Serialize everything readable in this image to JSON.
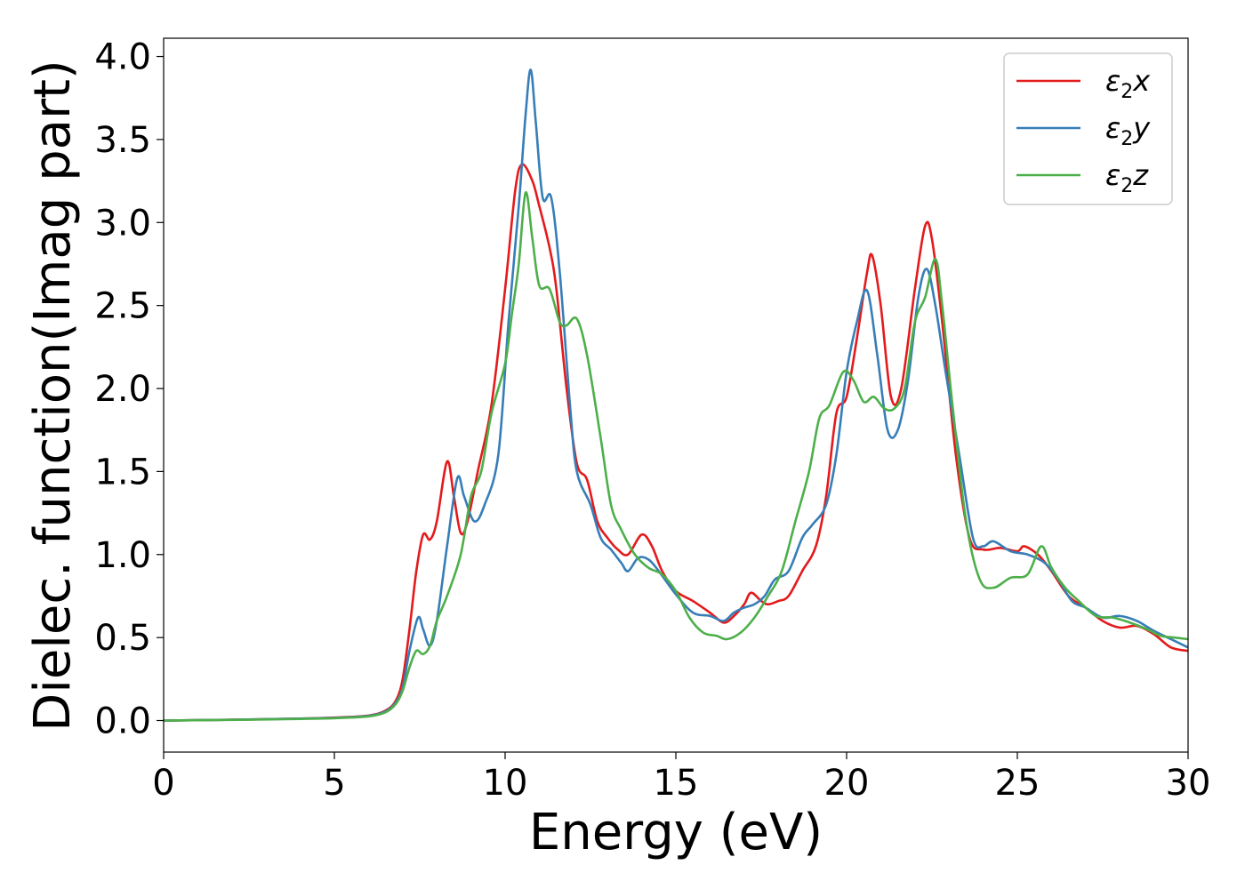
{
  "chart_data": {
    "type": "line",
    "title": "",
    "xlabel": "Energy (eV)",
    "ylabel": "Dielec. function(Imag part)",
    "xlim": [
      0,
      30
    ],
    "ylim": [
      -0.19,
      4.11
    ],
    "xticks": [
      0,
      5,
      10,
      15,
      20,
      25,
      30
    ],
    "xtick_labels": [
      "0",
      "5",
      "10",
      "15",
      "20",
      "25",
      "30"
    ],
    "yticks": [
      0.0,
      0.5,
      1.0,
      1.5,
      2.0,
      2.5,
      3.0,
      3.5,
      4.0
    ],
    "ytick_labels": [
      "0.0",
      "0.5",
      "1.0",
      "1.5",
      "2.0",
      "2.5",
      "3.0",
      "3.5",
      "4.0"
    ],
    "grid": false,
    "legend_position": "top-right",
    "series": [
      {
        "name": "ε2x",
        "label_base": "ε",
        "label_sub": "2",
        "label_tail": "x",
        "color": "#e41a1c",
        "points": [
          [
            0,
            0.0
          ],
          [
            2,
            0.005
          ],
          [
            4,
            0.012
          ],
          [
            5,
            0.018
          ],
          [
            6,
            0.03
          ],
          [
            6.5,
            0.06
          ],
          [
            6.8,
            0.12
          ],
          [
            7.0,
            0.25
          ],
          [
            7.2,
            0.55
          ],
          [
            7.4,
            0.9
          ],
          [
            7.6,
            1.12
          ],
          [
            7.8,
            1.09
          ],
          [
            8.0,
            1.2
          ],
          [
            8.3,
            1.56
          ],
          [
            8.5,
            1.35
          ],
          [
            8.7,
            1.13
          ],
          [
            8.9,
            1.2
          ],
          [
            9.2,
            1.5
          ],
          [
            9.6,
            1.9
          ],
          [
            10.0,
            2.6
          ],
          [
            10.3,
            3.2
          ],
          [
            10.5,
            3.35
          ],
          [
            10.8,
            3.25
          ],
          [
            11.0,
            3.1
          ],
          [
            11.3,
            2.85
          ],
          [
            11.5,
            2.6
          ],
          [
            11.8,
            2.0
          ],
          [
            12.1,
            1.55
          ],
          [
            12.4,
            1.45
          ],
          [
            12.7,
            1.2
          ],
          [
            13.0,
            1.1
          ],
          [
            13.3,
            1.03
          ],
          [
            13.6,
            1.0
          ],
          [
            14.0,
            1.12
          ],
          [
            14.3,
            1.05
          ],
          [
            14.6,
            0.9
          ],
          [
            15.0,
            0.78
          ],
          [
            15.5,
            0.72
          ],
          [
            16.0,
            0.65
          ],
          [
            16.4,
            0.59
          ],
          [
            16.7,
            0.63
          ],
          [
            17.0,
            0.7
          ],
          [
            17.2,
            0.77
          ],
          [
            17.5,
            0.72
          ],
          [
            17.7,
            0.7
          ],
          [
            18.0,
            0.72
          ],
          [
            18.3,
            0.75
          ],
          [
            18.7,
            0.9
          ],
          [
            19.1,
            1.05
          ],
          [
            19.4,
            1.35
          ],
          [
            19.7,
            1.85
          ],
          [
            20.0,
            1.95
          ],
          [
            20.3,
            2.3
          ],
          [
            20.6,
            2.7
          ],
          [
            20.75,
            2.8
          ],
          [
            21.0,
            2.5
          ],
          [
            21.3,
            1.95
          ],
          [
            21.6,
            2.0
          ],
          [
            22.0,
            2.6
          ],
          [
            22.3,
            2.98
          ],
          [
            22.5,
            2.9
          ],
          [
            22.8,
            2.4
          ],
          [
            23.2,
            1.6
          ],
          [
            23.6,
            1.1
          ],
          [
            24.0,
            1.03
          ],
          [
            24.5,
            1.04
          ],
          [
            25.0,
            1.02
          ],
          [
            25.2,
            1.05
          ],
          [
            25.6,
            1.0
          ],
          [
            26.0,
            0.9
          ],
          [
            26.5,
            0.75
          ],
          [
            27.0,
            0.68
          ],
          [
            27.5,
            0.6
          ],
          [
            28.0,
            0.56
          ],
          [
            28.5,
            0.57
          ],
          [
            29.0,
            0.52
          ],
          [
            29.5,
            0.44
          ],
          [
            30.0,
            0.42
          ]
        ]
      },
      {
        "name": "ε2y",
        "label_base": "ε",
        "label_sub": "2",
        "label_tail": "y",
        "color": "#377eb8",
        "points": [
          [
            0,
            0.0
          ],
          [
            2,
            0.005
          ],
          [
            4,
            0.012
          ],
          [
            5,
            0.016
          ],
          [
            6,
            0.028
          ],
          [
            6.5,
            0.055
          ],
          [
            6.8,
            0.11
          ],
          [
            7.0,
            0.2
          ],
          [
            7.2,
            0.42
          ],
          [
            7.45,
            0.62
          ],
          [
            7.6,
            0.55
          ],
          [
            7.8,
            0.45
          ],
          [
            8.0,
            0.6
          ],
          [
            8.3,
            1.05
          ],
          [
            8.6,
            1.46
          ],
          [
            8.8,
            1.35
          ],
          [
            9.1,
            1.2
          ],
          [
            9.4,
            1.3
          ],
          [
            9.8,
            1.6
          ],
          [
            10.1,
            2.4
          ],
          [
            10.4,
            3.1
          ],
          [
            10.6,
            3.65
          ],
          [
            10.75,
            3.92
          ],
          [
            10.9,
            3.6
          ],
          [
            11.1,
            3.15
          ],
          [
            11.35,
            3.15
          ],
          [
            11.6,
            2.7
          ],
          [
            11.9,
            1.9
          ],
          [
            12.1,
            1.5
          ],
          [
            12.5,
            1.3
          ],
          [
            12.8,
            1.1
          ],
          [
            13.1,
            1.03
          ],
          [
            13.4,
            0.95
          ],
          [
            13.6,
            0.9
          ],
          [
            13.9,
            0.98
          ],
          [
            14.2,
            0.97
          ],
          [
            14.5,
            0.9
          ],
          [
            15.0,
            0.76
          ],
          [
            15.5,
            0.65
          ],
          [
            16.0,
            0.63
          ],
          [
            16.4,
            0.6
          ],
          [
            16.7,
            0.65
          ],
          [
            17.0,
            0.68
          ],
          [
            17.3,
            0.7
          ],
          [
            17.6,
            0.75
          ],
          [
            17.9,
            0.85
          ],
          [
            18.3,
            0.9
          ],
          [
            18.7,
            1.1
          ],
          [
            19.0,
            1.18
          ],
          [
            19.4,
            1.3
          ],
          [
            19.7,
            1.6
          ],
          [
            20.0,
            2.1
          ],
          [
            20.3,
            2.4
          ],
          [
            20.6,
            2.59
          ],
          [
            20.9,
            2.2
          ],
          [
            21.2,
            1.75
          ],
          [
            21.5,
            1.75
          ],
          [
            21.8,
            2.05
          ],
          [
            22.1,
            2.55
          ],
          [
            22.35,
            2.72
          ],
          [
            22.6,
            2.5
          ],
          [
            22.9,
            2.1
          ],
          [
            23.3,
            1.6
          ],
          [
            23.7,
            1.1
          ],
          [
            24.0,
            1.05
          ],
          [
            24.3,
            1.08
          ],
          [
            24.8,
            1.02
          ],
          [
            25.3,
            1.0
          ],
          [
            25.8,
            0.95
          ],
          [
            26.2,
            0.85
          ],
          [
            26.6,
            0.72
          ],
          [
            27.0,
            0.68
          ],
          [
            27.5,
            0.62
          ],
          [
            28.0,
            0.63
          ],
          [
            28.5,
            0.6
          ],
          [
            29.0,
            0.54
          ],
          [
            29.5,
            0.49
          ],
          [
            30.0,
            0.44
          ]
        ]
      },
      {
        "name": "ε2z",
        "label_base": "ε",
        "label_sub": "2",
        "label_tail": "z",
        "color": "#4daf4a",
        "points": [
          [
            0,
            0.0
          ],
          [
            2,
            0.004
          ],
          [
            4,
            0.01
          ],
          [
            5,
            0.014
          ],
          [
            6,
            0.025
          ],
          [
            6.5,
            0.05
          ],
          [
            6.8,
            0.1
          ],
          [
            7.0,
            0.18
          ],
          [
            7.2,
            0.32
          ],
          [
            7.4,
            0.42
          ],
          [
            7.6,
            0.4
          ],
          [
            7.8,
            0.45
          ],
          [
            8.0,
            0.6
          ],
          [
            8.3,
            0.75
          ],
          [
            8.7,
            1.0
          ],
          [
            9.0,
            1.35
          ],
          [
            9.3,
            1.5
          ],
          [
            9.6,
            1.85
          ],
          [
            10.0,
            2.15
          ],
          [
            10.2,
            2.45
          ],
          [
            10.4,
            2.75
          ],
          [
            10.6,
            3.18
          ],
          [
            10.8,
            2.9
          ],
          [
            11.0,
            2.62
          ],
          [
            11.3,
            2.6
          ],
          [
            11.6,
            2.4
          ],
          [
            11.8,
            2.38
          ],
          [
            12.1,
            2.42
          ],
          [
            12.4,
            2.2
          ],
          [
            12.8,
            1.7
          ],
          [
            13.1,
            1.3
          ],
          [
            13.4,
            1.15
          ],
          [
            13.8,
            1.0
          ],
          [
            14.2,
            0.92
          ],
          [
            14.6,
            0.88
          ],
          [
            15.0,
            0.78
          ],
          [
            15.4,
            0.62
          ],
          [
            15.8,
            0.53
          ],
          [
            16.2,
            0.51
          ],
          [
            16.5,
            0.49
          ],
          [
            16.9,
            0.53
          ],
          [
            17.3,
            0.62
          ],
          [
            17.7,
            0.75
          ],
          [
            18.1,
            0.9
          ],
          [
            18.5,
            1.2
          ],
          [
            18.9,
            1.5
          ],
          [
            19.2,
            1.82
          ],
          [
            19.5,
            1.9
          ],
          [
            19.9,
            2.1
          ],
          [
            20.2,
            2.05
          ],
          [
            20.5,
            1.92
          ],
          [
            20.8,
            1.95
          ],
          [
            21.1,
            1.88
          ],
          [
            21.4,
            1.88
          ],
          [
            21.7,
            2.0
          ],
          [
            22.0,
            2.4
          ],
          [
            22.3,
            2.55
          ],
          [
            22.6,
            2.78
          ],
          [
            22.8,
            2.5
          ],
          [
            23.1,
            1.9
          ],
          [
            23.5,
            1.2
          ],
          [
            23.9,
            0.85
          ],
          [
            24.3,
            0.8
          ],
          [
            24.8,
            0.86
          ],
          [
            25.3,
            0.88
          ],
          [
            25.7,
            1.05
          ],
          [
            26.0,
            0.92
          ],
          [
            26.4,
            0.8
          ],
          [
            26.8,
            0.72
          ],
          [
            27.3,
            0.63
          ],
          [
            27.8,
            0.62
          ],
          [
            28.3,
            0.59
          ],
          [
            28.8,
            0.55
          ],
          [
            29.2,
            0.51
          ],
          [
            29.6,
            0.5
          ],
          [
            30.0,
            0.49
          ]
        ]
      }
    ]
  }
}
